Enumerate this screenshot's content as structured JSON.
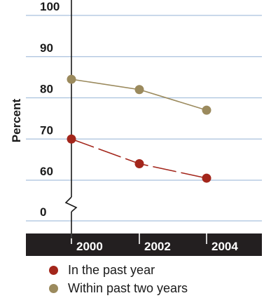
{
  "chart_data": {
    "type": "line",
    "title": "",
    "xlabel": "",
    "ylabel": "Percent",
    "x": [
      "2000",
      "2002",
      "2004"
    ],
    "y_ticks": [
      "100",
      "90",
      "80",
      "70",
      "60",
      "0"
    ],
    "ylim": [
      55,
      100
    ],
    "y_axis_break": true,
    "grid": true,
    "legend_position": "bottom",
    "series": [
      {
        "name": "In the past year",
        "values": [
          70,
          64,
          60.5
        ],
        "color": "#a3261b",
        "line_style": "dashed"
      },
      {
        "name": "Within past two years",
        "values": [
          84.5,
          82,
          77
        ],
        "color": "#9b8a5d",
        "line_style": "solid"
      }
    ]
  },
  "colors": {
    "grid": "#a9c1dd",
    "axis_band": "#231f20"
  }
}
